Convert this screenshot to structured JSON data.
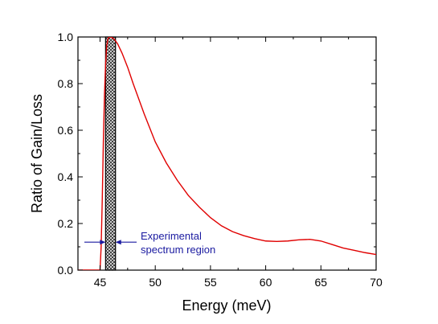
{
  "chart_data": {
    "type": "line",
    "title": "",
    "xlabel": "Energy (meV)",
    "ylabel": "Ratio of Gain/Loss",
    "xlim": [
      43,
      70
    ],
    "ylim": [
      0.0,
      1.0
    ],
    "xticks": [
      45,
      50,
      55,
      60,
      65,
      70
    ],
    "yticks": [
      0.0,
      0.2,
      0.4,
      0.6,
      0.8,
      1.0
    ],
    "xtick_labels": [
      "45",
      "50",
      "55",
      "60",
      "65",
      "70"
    ],
    "ytick_labels": [
      "0.0",
      "0.2",
      "0.4",
      "0.6",
      "0.8",
      "1.0"
    ],
    "grid": false,
    "series": [
      {
        "color": "#e00000",
        "x": [
          43.0,
          45.0,
          45.1,
          45.2,
          45.3,
          45.4,
          45.5,
          45.6,
          45.7,
          45.8,
          46.0,
          46.3,
          46.6,
          47.0,
          47.5,
          48.0,
          49.0,
          50.0,
          51.0,
          52.0,
          53.0,
          54.0,
          55.0,
          56.0,
          57.0,
          58.0,
          59.0,
          60.0,
          61.0,
          62.0,
          63.0,
          64.0,
          65.0,
          66.0,
          67.0,
          68.0,
          69.0,
          70.0
        ],
        "y": [
          0.0,
          0.0,
          0.1,
          0.3,
          0.55,
          0.75,
          0.88,
          0.96,
          0.99,
          1.0,
          1.0,
          0.99,
          0.97,
          0.93,
          0.87,
          0.8,
          0.67,
          0.55,
          0.46,
          0.385,
          0.32,
          0.27,
          0.225,
          0.19,
          0.165,
          0.148,
          0.135,
          0.125,
          0.123,
          0.125,
          0.13,
          0.132,
          0.125,
          0.11,
          0.095,
          0.085,
          0.075,
          0.067
        ]
      }
    ],
    "shaded_region": {
      "x_range": [
        45.5,
        46.4
      ],
      "pattern": "crosshatch",
      "fill": "#555555"
    },
    "annotation": {
      "lines": [
        "Experimental",
        "spectrum region"
      ],
      "color": "#1a1aa0",
      "arrow_y": 0.12
    }
  }
}
